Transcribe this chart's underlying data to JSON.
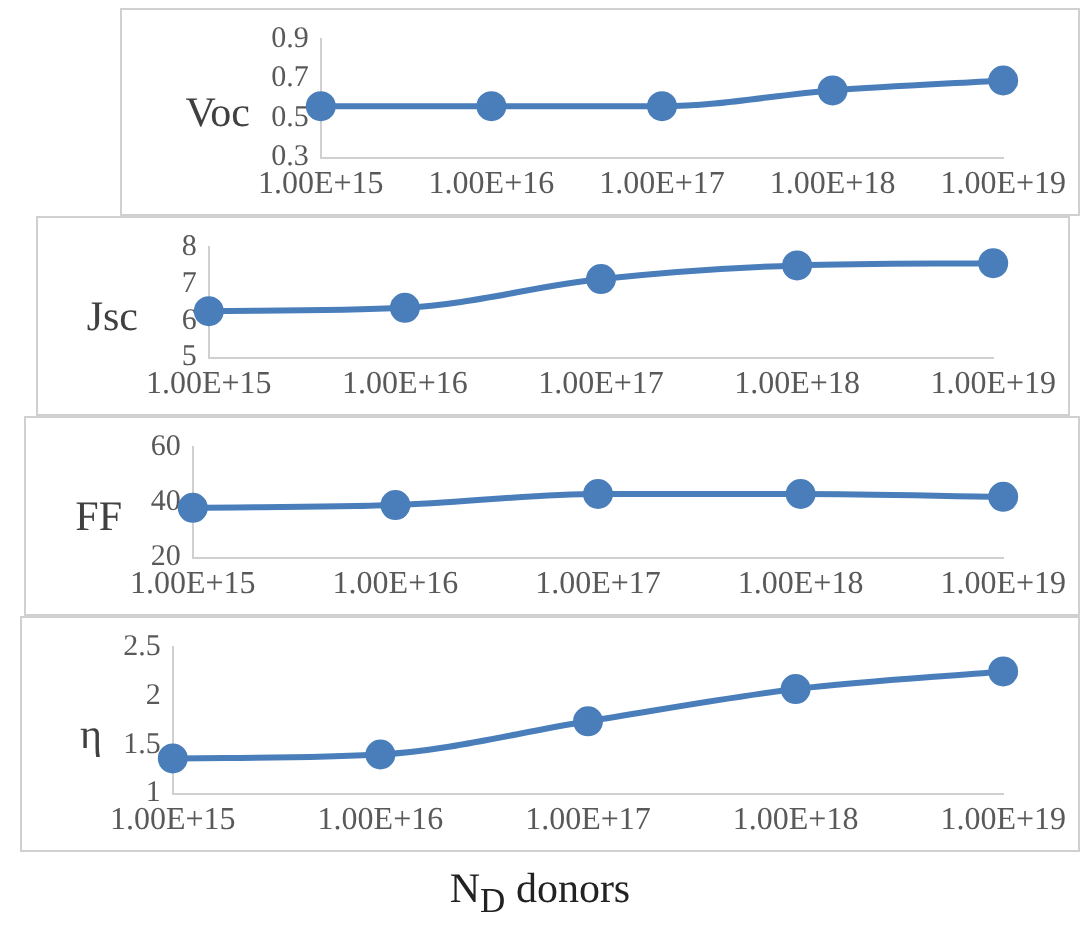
{
  "chart_data": [
    {
      "type": "line",
      "ylabel": "Voc",
      "categories": [
        "1.00E+15",
        "1.00E+16",
        "1.00E+17",
        "1.00E+18",
        "1.00E+19"
      ],
      "series": [
        {
          "color": "#4a7ebb",
          "values": [
            0.56,
            0.56,
            0.56,
            0.64,
            0.69
          ]
        }
      ],
      "ylim": [
        0.3,
        0.9
      ],
      "yticks": [
        0.3,
        0.5,
        0.7,
        0.9
      ],
      "grid": false,
      "legend": false,
      "marker": "circle"
    },
    {
      "type": "line",
      "ylabel": "Jsc",
      "categories": [
        "1.00E+15",
        "1.00E+16",
        "1.00E+17",
        "1.00E+18",
        "1.00E+19"
      ],
      "series": [
        {
          "color": "#4a7ebb",
          "values": [
            6.26,
            6.35,
            7.13,
            7.5,
            7.56
          ]
        }
      ],
      "ylim": [
        5,
        8
      ],
      "yticks": [
        5,
        6,
        7,
        8
      ],
      "grid": false,
      "legend": false,
      "marker": "circle"
    },
    {
      "type": "line",
      "ylabel": "FF",
      "categories": [
        "1.00E+15",
        "1.00E+16",
        "1.00E+17",
        "1.00E+18",
        "1.00E+19"
      ],
      "series": [
        {
          "color": "#4a7ebb",
          "values": [
            38,
            39,
            43,
            43,
            42
          ]
        }
      ],
      "ylim": [
        20,
        60
      ],
      "yticks": [
        20,
        40,
        60
      ],
      "grid": false,
      "legend": false,
      "marker": "circle"
    },
    {
      "type": "line",
      "ylabel": "η",
      "xlabel": "N$_{D}$ donors",
      "categories": [
        "1.00E+15",
        "1.00E+16",
        "1.00E+17",
        "1.00E+18",
        "1.00E+19"
      ],
      "series": [
        {
          "color": "#4a7ebb",
          "values": [
            1.36,
            1.4,
            1.74,
            2.07,
            2.25
          ]
        }
      ],
      "ylim": [
        1,
        2.5
      ],
      "yticks": [
        1,
        {
          "value": 1.5,
          "label": "1.5"
        },
        2,
        2.5
      ],
      "grid": false,
      "legend": false,
      "marker": "circle"
    }
  ]
}
